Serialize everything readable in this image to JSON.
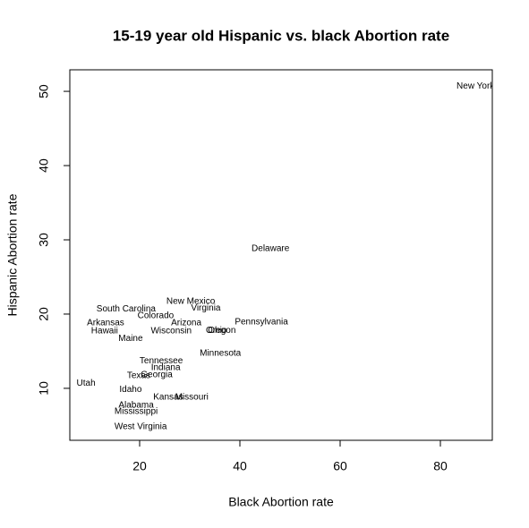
{
  "chart_data": {
    "type": "scatter",
    "title": "15-19 year old Hispanic vs. black Abortion rate",
    "x_label": "Black Abortion rate",
    "y_label": "Hispanic Abortion rate",
    "labels": [
      "New York",
      "Delaware",
      "New Mexico",
      "Virginia",
      "South Carolina",
      "Colorado",
      "Arkansas",
      "Arizona",
      "Pennsylvania",
      "Hawaii",
      "Wisconsin",
      "Ohio",
      "Oregon",
      "Maine",
      "Minnesota",
      "Tennessee",
      "Indiana",
      "Texas",
      "Georgia",
      "Utah",
      "Idaho",
      "Kansas",
      "Missouri",
      "Alabama",
      "Mississippi",
      "West Virginia"
    ],
    "x": [
      87,
      46.1,
      30.2,
      33.2,
      17.3,
      23.2,
      13.2,
      29.3,
      44.3,
      13.0,
      26.3,
      35.5,
      36.2,
      18.2,
      36.1,
      24.3,
      25.2,
      19.8,
      23.4,
      9.3,
      18.2,
      25.7,
      30.4,
      19.3,
      19.3,
      20.2
    ],
    "values": [
      50.7,
      28.8,
      21.7,
      20.8,
      20.7,
      19.8,
      18.8,
      18.8,
      18.9,
      17.7,
      17.7,
      17.8,
      17.8,
      16.7,
      14.7,
      13.7,
      12.8,
      11.7,
      11.8,
      10.7,
      9.8,
      8.8,
      8.8,
      7.7,
      6.9,
      4.8
    ],
    "xlim": [
      6.07,
      90.36
    ],
    "ylim": [
      3.0,
      52.9
    ],
    "xticks": [
      20,
      40,
      60,
      80
    ],
    "yticks": [
      10,
      20,
      30,
      40,
      50
    ]
  }
}
